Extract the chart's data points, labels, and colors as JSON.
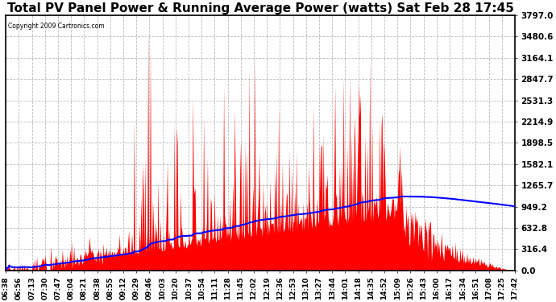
{
  "title": "Total PV Panel Power & Running Average Power (watts) Sat Feb 28 17:45",
  "ymax": 3797.0,
  "ytick_values": [
    0.0,
    316.4,
    632.8,
    949.2,
    1265.7,
    1582.1,
    1898.5,
    2214.9,
    2531.3,
    2847.7,
    3164.1,
    3480.6,
    3797.0
  ],
  "ytick_labels": [
    "0.0",
    "316.4",
    "632.8",
    "949.2",
    "1265.7",
    "1582.1",
    "1898.5",
    "2214.9",
    "2531.3",
    "2847.7",
    "3164.1",
    "3480.6",
    "3797.0"
  ],
  "copyright_text": "Copyright 2009 Cartronics.com",
  "bg_color": "#ffffff",
  "plot_bg_color": "#ffffff",
  "bar_color": "#ff0000",
  "avg_color": "#0000ff",
  "title_fontsize": 11,
  "grid_color": "#aaaaaa",
  "xtick_labels": [
    "06:38",
    "06:56",
    "07:13",
    "07:30",
    "07:47",
    "08:04",
    "08:21",
    "08:38",
    "08:55",
    "09:12",
    "09:29",
    "09:46",
    "10:03",
    "10:20",
    "10:37",
    "10:54",
    "11:11",
    "11:28",
    "11:45",
    "12:02",
    "12:19",
    "12:36",
    "12:53",
    "13:10",
    "13:27",
    "13:44",
    "14:01",
    "14:18",
    "14:35",
    "14:52",
    "15:09",
    "15:26",
    "15:43",
    "16:00",
    "16:17",
    "16:34",
    "16:51",
    "17:08",
    "17:25",
    "17:42"
  ],
  "n_points": 660
}
